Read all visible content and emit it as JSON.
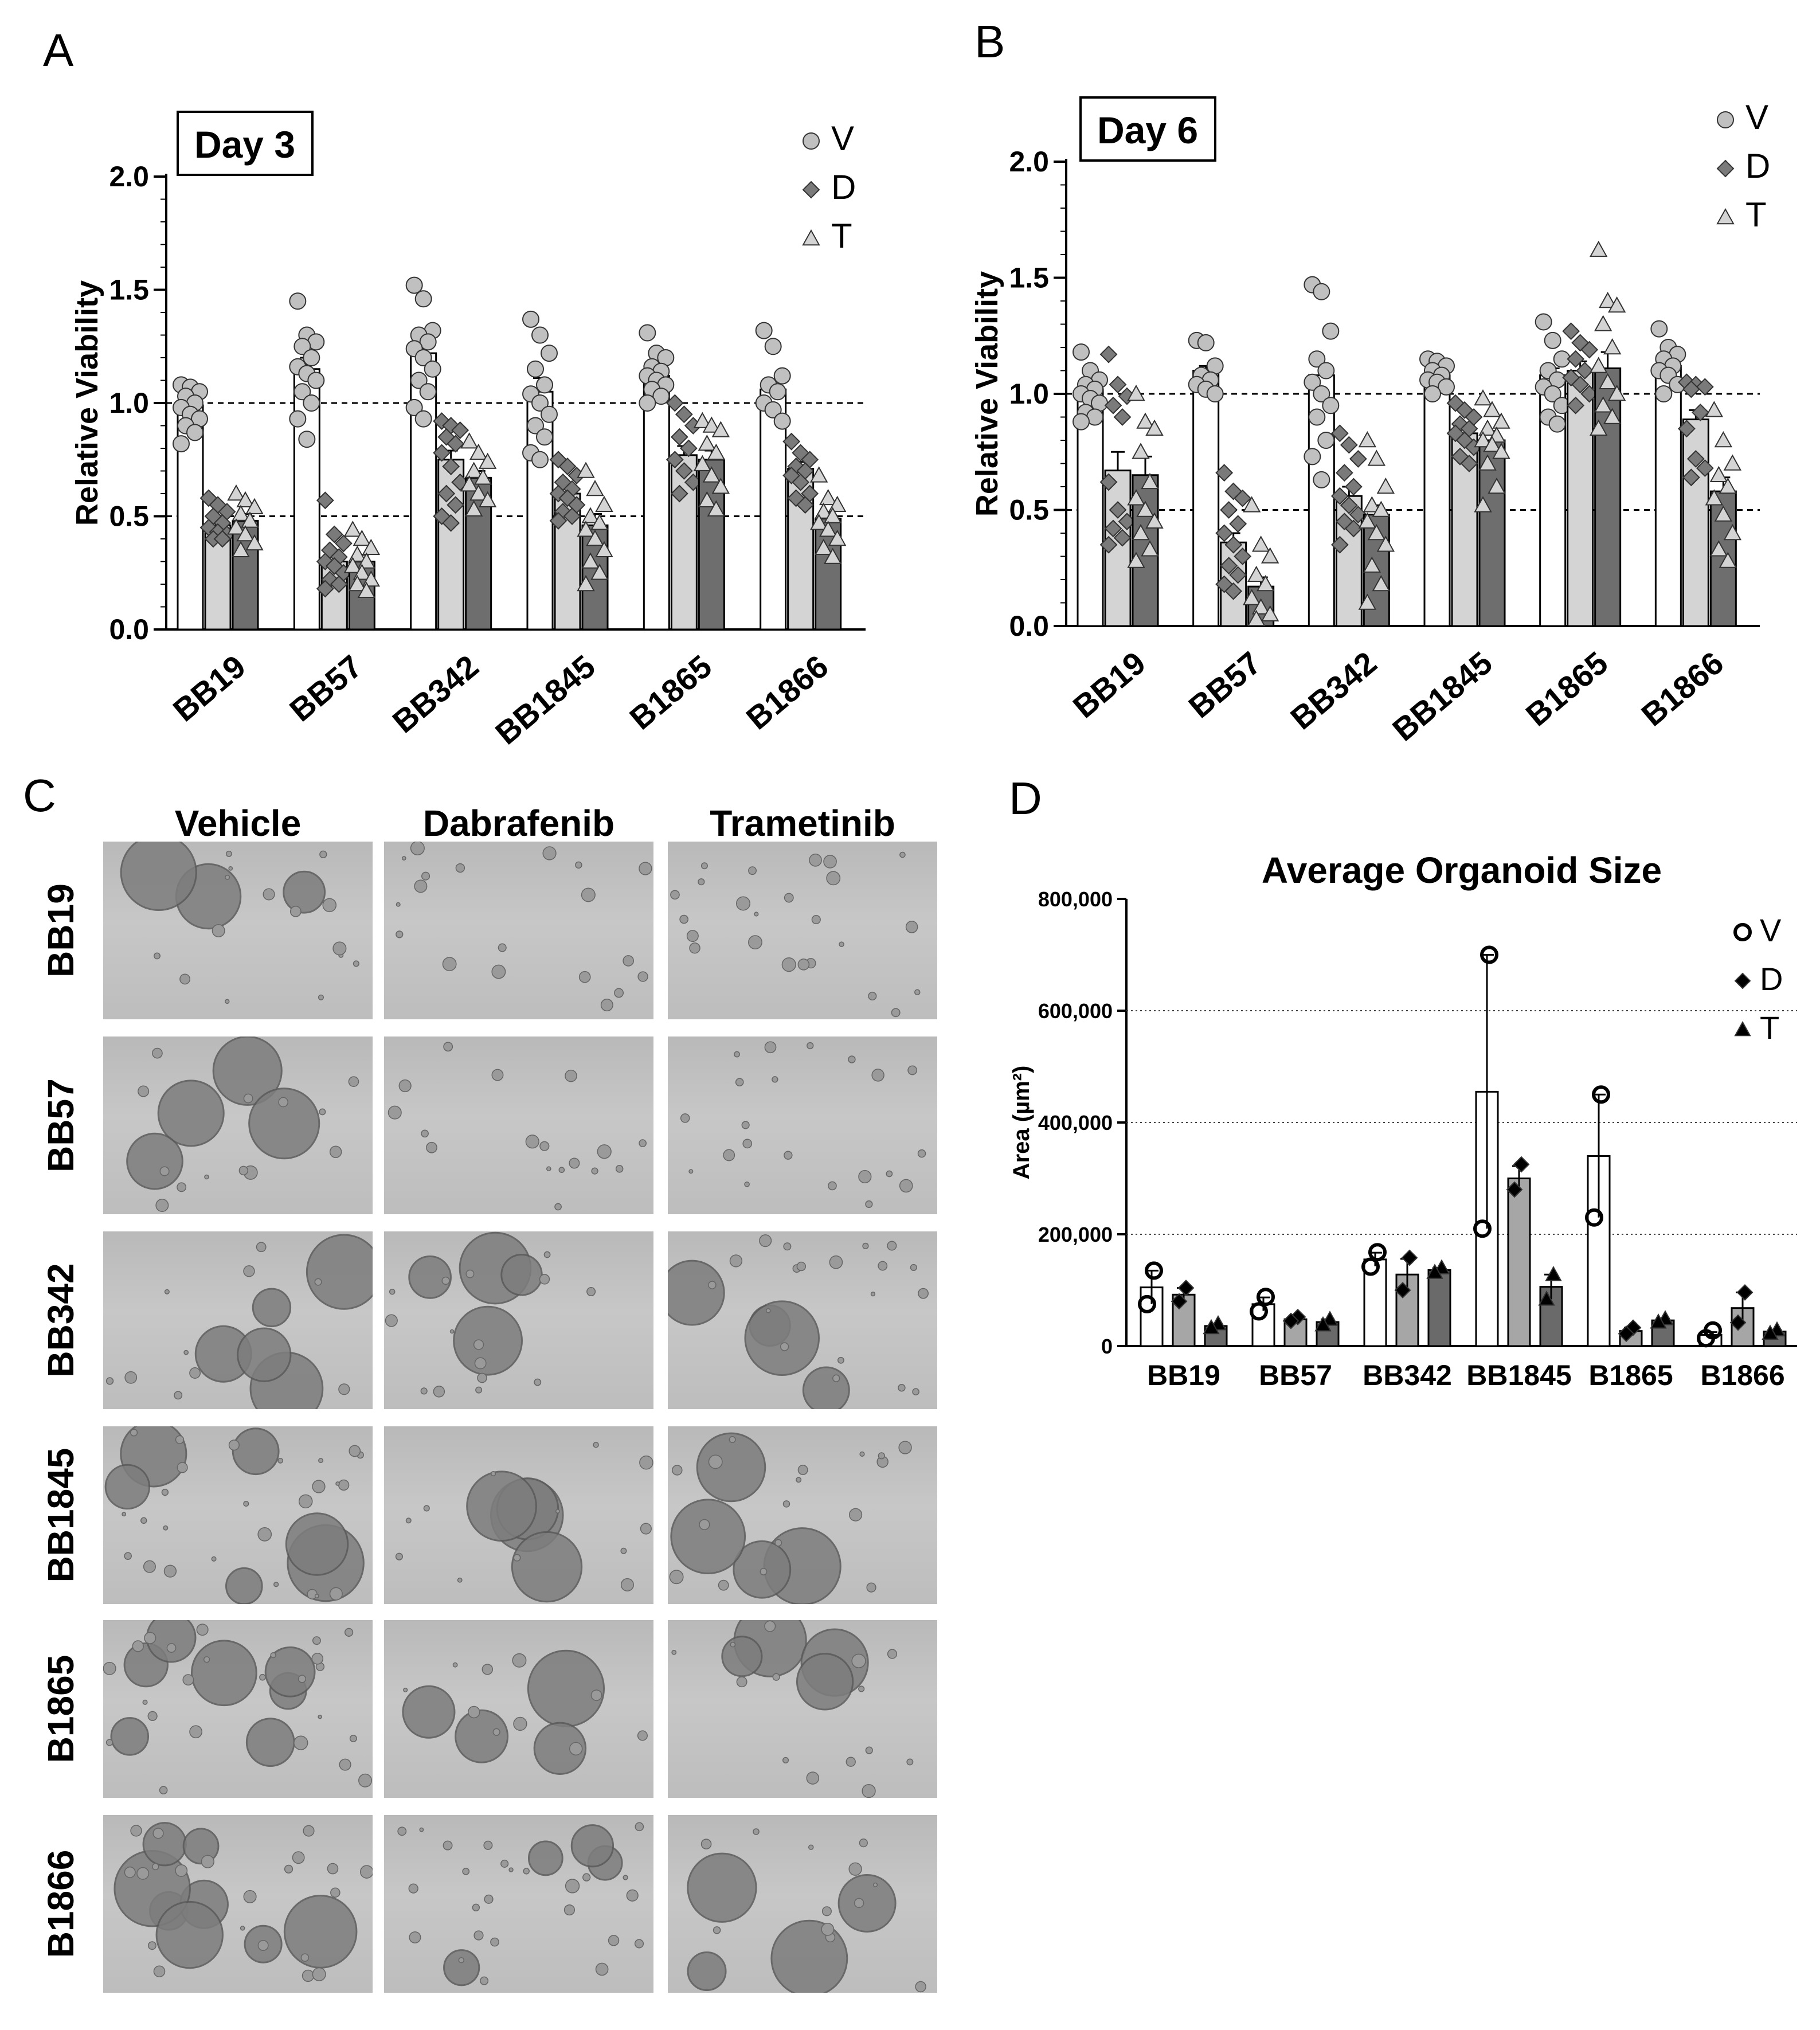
{
  "panels": [
    {
      "letter": "A",
      "title": "Day 3"
    },
    {
      "letter": "B",
      "title": "Day 6"
    },
    {
      "letter": "C",
      "title": ""
    },
    {
      "letter": "D",
      "title": "Average Organoid Size"
    }
  ],
  "microscopy": {
    "columns": [
      "Vehicle",
      "Dabrafenib",
      "Trametinib"
    ],
    "rows": [
      "BB19",
      "BB57",
      "BB342",
      "BB1845",
      "B1865",
      "B1866"
    ]
  },
  "colors": {
    "V": "#ffffff",
    "D": "#d4d4d4",
    "T": "#6e6e6e",
    "D_size": "#a6a6a6",
    "T_size": "#6a6a6a",
    "marker_V": "#c0c0c0",
    "marker_D": "#7a7a7a",
    "marker_T": "#d4d4d4"
  },
  "chart_data": [
    {
      "id": "A",
      "type": "bar",
      "title": "Day 3",
      "xlabel": "",
      "ylabel": "Relative Viability",
      "ylim": [
        0,
        2
      ],
      "yticks": [
        "0.0",
        "0.5",
        "1.0",
        "1.5",
        "2.0"
      ],
      "reference_lines": [
        1.0,
        0.5
      ],
      "legend_position": "top-right",
      "categories": [
        "BB19",
        "BB57",
        "BB342",
        "BB1845",
        "B1865",
        "B1866"
      ],
      "series": [
        {
          "name": "V",
          "marker": "circle",
          "values": [
            0.99,
            1.15,
            1.22,
            1.05,
            1.12,
            1.06
          ],
          "errors": [
            0.03,
            0.05,
            0.05,
            0.06,
            0.03,
            0.04
          ],
          "points": [
            [
              1.08,
              1.07,
              1.05,
              1.03,
              1.0,
              0.98,
              0.95,
              0.93,
              0.9,
              0.87,
              0.82
            ],
            [
              1.45,
              1.3,
              1.27,
              1.25,
              1.2,
              1.16,
              1.13,
              1.1,
              1.05,
              1.0,
              0.93,
              0.84
            ],
            [
              1.52,
              1.46,
              1.32,
              1.3,
              1.27,
              1.24,
              1.2,
              1.15,
              1.1,
              1.05,
              0.98,
              0.93
            ],
            [
              1.37,
              1.3,
              1.22,
              1.15,
              1.08,
              1.04,
              1.0,
              0.95,
              0.9,
              0.85,
              0.78,
              0.75
            ],
            [
              1.31,
              1.22,
              1.2,
              1.16,
              1.14,
              1.12,
              1.1,
              1.08,
              1.06,
              1.03,
              1.0
            ],
            [
              1.32,
              1.25,
              1.12,
              1.08,
              1.05,
              1.0,
              0.97,
              0.92
            ]
          ]
        },
        {
          "name": "D",
          "marker": "diamond",
          "values": [
            0.46,
            0.3,
            0.75,
            0.6,
            0.77,
            0.71
          ],
          "errors": [
            0.02,
            0.03,
            0.04,
            0.03,
            0.04,
            0.03
          ],
          "points": [
            [
              0.58,
              0.55,
              0.52,
              0.5,
              0.47,
              0.45,
              0.43,
              0.42,
              0.4,
              0.4
            ],
            [
              0.57,
              0.42,
              0.38,
              0.35,
              0.32,
              0.3,
              0.28,
              0.25,
              0.22,
              0.2,
              0.18
            ],
            [
              0.92,
              0.9,
              0.88,
              0.85,
              0.82,
              0.78,
              0.72,
              0.65,
              0.6,
              0.55,
              0.5,
              0.47
            ],
            [
              0.75,
              0.72,
              0.68,
              0.65,
              0.62,
              0.6,
              0.58,
              0.55,
              0.52,
              0.5,
              0.48
            ],
            [
              1.0,
              0.95,
              0.9,
              0.85,
              0.8,
              0.75,
              0.7,
              0.65,
              0.6
            ],
            [
              0.83,
              0.78,
              0.75,
              0.72,
              0.7,
              0.68,
              0.65,
              0.6,
              0.58,
              0.55
            ]
          ]
        },
        {
          "name": "T",
          "marker": "triangle",
          "values": [
            0.48,
            0.3,
            0.67,
            0.46,
            0.75,
            0.49
          ],
          "errors": [
            0.03,
            0.03,
            0.03,
            0.05,
            0.04,
            0.03
          ],
          "points": [
            [
              0.6,
              0.57,
              0.54,
              0.51,
              0.48,
              0.45,
              0.42,
              0.38,
              0.35
            ],
            [
              0.44,
              0.4,
              0.36,
              0.33,
              0.3,
              0.28,
              0.25,
              0.22,
              0.2,
              0.17
            ],
            [
              0.83,
              0.78,
              0.74,
              0.7,
              0.67,
              0.64,
              0.6,
              0.57,
              0.53
            ],
            [
              0.7,
              0.62,
              0.55,
              0.5,
              0.47,
              0.44,
              0.4,
              0.35,
              0.3,
              0.25,
              0.2
            ],
            [
              0.92,
              0.9,
              0.88,
              0.82,
              0.78,
              0.73,
              0.68,
              0.63,
              0.57,
              0.53
            ],
            [
              0.68,
              0.58,
              0.55,
              0.52,
              0.5,
              0.47,
              0.44,
              0.4,
              0.36,
              0.32
            ]
          ]
        }
      ]
    },
    {
      "id": "B",
      "type": "bar",
      "title": "Day 6",
      "xlabel": "",
      "ylabel": "Relative Viability",
      "ylim": [
        0,
        2
      ],
      "yticks": [
        "0.0",
        "0.5",
        "1.0",
        "1.5",
        "2.0"
      ],
      "reference_lines": [
        1.0,
        0.5
      ],
      "legend_position": "top-right",
      "categories": [
        "BB19",
        "BB57",
        "BB342",
        "BB1845",
        "B1865",
        "B1866"
      ],
      "series": [
        {
          "name": "V",
          "marker": "circle",
          "values": [
            1.02,
            1.1,
            1.08,
            1.08,
            1.08,
            1.12
          ],
          "errors": [
            0.02,
            0.02,
            0.05,
            0.02,
            0.03,
            0.03
          ],
          "points": [
            [
              1.18,
              1.1,
              1.06,
              1.04,
              1.02,
              1.0,
              0.98,
              0.96,
              0.92,
              0.9,
              0.88
            ],
            [
              1.23,
              1.22,
              1.12,
              1.08,
              1.06,
              1.04,
              1.02,
              1.0
            ],
            [
              1.47,
              1.44,
              1.27,
              1.15,
              1.1,
              1.05,
              1.0,
              0.95,
              0.9,
              0.8,
              0.73,
              0.63
            ],
            [
              1.15,
              1.14,
              1.12,
              1.1,
              1.08,
              1.06,
              1.05,
              1.03,
              1.0
            ],
            [
              1.31,
              1.23,
              1.15,
              1.1,
              1.06,
              1.03,
              1.0,
              0.95,
              0.9,
              0.87
            ],
            [
              1.28,
              1.2,
              1.17,
              1.15,
              1.12,
              1.1,
              1.08,
              1.04,
              1.0
            ]
          ]
        },
        {
          "name": "D",
          "marker": "diamond",
          "values": [
            0.67,
            0.36,
            0.56,
            0.83,
            1.1,
            0.89
          ],
          "errors": [
            0.08,
            0.04,
            0.04,
            0.02,
            0.04,
            0.04
          ],
          "points": [
            [
              1.17,
              1.04,
              0.99,
              0.95,
              0.9,
              0.62,
              0.5,
              0.45,
              0.42,
              0.38,
              0.35
            ],
            [
              0.66,
              0.58,
              0.55,
              0.5,
              0.44,
              0.4,
              0.35,
              0.3,
              0.26,
              0.22,
              0.18,
              0.15
            ],
            [
              0.83,
              0.78,
              0.72,
              0.66,
              0.6,
              0.56,
              0.52,
              0.48,
              0.45,
              0.42,
              0.35
            ],
            [
              0.96,
              0.93,
              0.9,
              0.87,
              0.85,
              0.83,
              0.8,
              0.77,
              0.73,
              0.7
            ],
            [
              1.27,
              1.22,
              1.19,
              1.15,
              1.1,
              1.07,
              1.04,
              1.0,
              0.95
            ],
            [
              1.05,
              1.04,
              1.03,
              1.02,
              0.92,
              0.85,
              0.72,
              0.68,
              0.64
            ]
          ]
        },
        {
          "name": "T",
          "marker": "triangle",
          "values": [
            0.65,
            0.17,
            0.48,
            0.8,
            1.11,
            0.58
          ],
          "errors": [
            0.08,
            0.04,
            0.04,
            0.04,
            0.07,
            0.06
          ],
          "points": [
            [
              1.0,
              0.88,
              0.85,
              0.75,
              0.62,
              0.55,
              0.5,
              0.45,
              0.4,
              0.33,
              0.28
            ],
            [
              0.52,
              0.35,
              0.3,
              0.22,
              0.18,
              0.12,
              0.08,
              0.05,
              0.03
            ],
            [
              0.8,
              0.72,
              0.6,
              0.52,
              0.5,
              0.45,
              0.4,
              0.35,
              0.26,
              0.18,
              0.1
            ],
            [
              0.98,
              0.93,
              0.88,
              0.85,
              0.82,
              0.8,
              0.78,
              0.75,
              0.7,
              0.6,
              0.52
            ],
            [
              1.62,
              1.4,
              1.38,
              1.3,
              1.2,
              1.12,
              1.05,
              1.0,
              0.95,
              0.9,
              0.85
            ],
            [
              0.93,
              0.8,
              0.7,
              0.65,
              0.6,
              0.55,
              0.48,
              0.4,
              0.33,
              0.28
            ]
          ]
        }
      ]
    },
    {
      "id": "D",
      "type": "bar",
      "title": "Average Organoid Size",
      "xlabel": "",
      "ylabel": "Area (µm²)",
      "ylim": [
        0,
        800000
      ],
      "yticks": [
        "0",
        "200,000",
        "400,000",
        "600,000",
        "800,000"
      ],
      "grid": "horizontal dotted",
      "legend_position": "top-right",
      "categories": [
        "BB19",
        "BB57",
        "BB342",
        "BB1845",
        "B1865",
        "B1866"
      ],
      "series": [
        {
          "name": "V",
          "marker": "open-circle",
          "values": [
            105000,
            75000,
            155000,
            455000,
            340000,
            20000
          ],
          "errors": [
            30000,
            12000,
            12000,
            245000,
            110000,
            5000
          ],
          "points": [
            [
              135000,
              75000
            ],
            [
              88000,
              62000
            ],
            [
              168000,
              142000
            ],
            [
              700000,
              210000
            ],
            [
              450000,
              230000
            ],
            [
              28000,
              14000
            ]
          ]
        },
        {
          "name": "D",
          "marker": "diamond",
          "values": [
            92000,
            48000,
            128000,
            300000,
            27000,
            68000
          ],
          "errors": [
            12000,
            4000,
            28000,
            22000,
            6000,
            28000
          ],
          "points": [
            [
              104000,
              80000
            ],
            [
              52000,
              45000
            ],
            [
              158000,
              100000
            ],
            [
              325000,
              280000
            ],
            [
              33000,
              22000
            ],
            [
              96000,
              42000
            ]
          ]
        },
        {
          "name": "T",
          "marker": "triangle",
          "values": [
            36000,
            43000,
            136000,
            106000,
            46000,
            26000
          ],
          "errors": [
            4000,
            5000,
            4000,
            22000,
            3000,
            3000
          ],
          "points": [
            [
              40000,
              33000
            ],
            [
              48000,
              38000
            ],
            [
              140000,
              132000
            ],
            [
              128000,
              84000
            ],
            [
              49000,
              43000
            ],
            [
              29000,
              23000
            ]
          ]
        }
      ]
    }
  ]
}
